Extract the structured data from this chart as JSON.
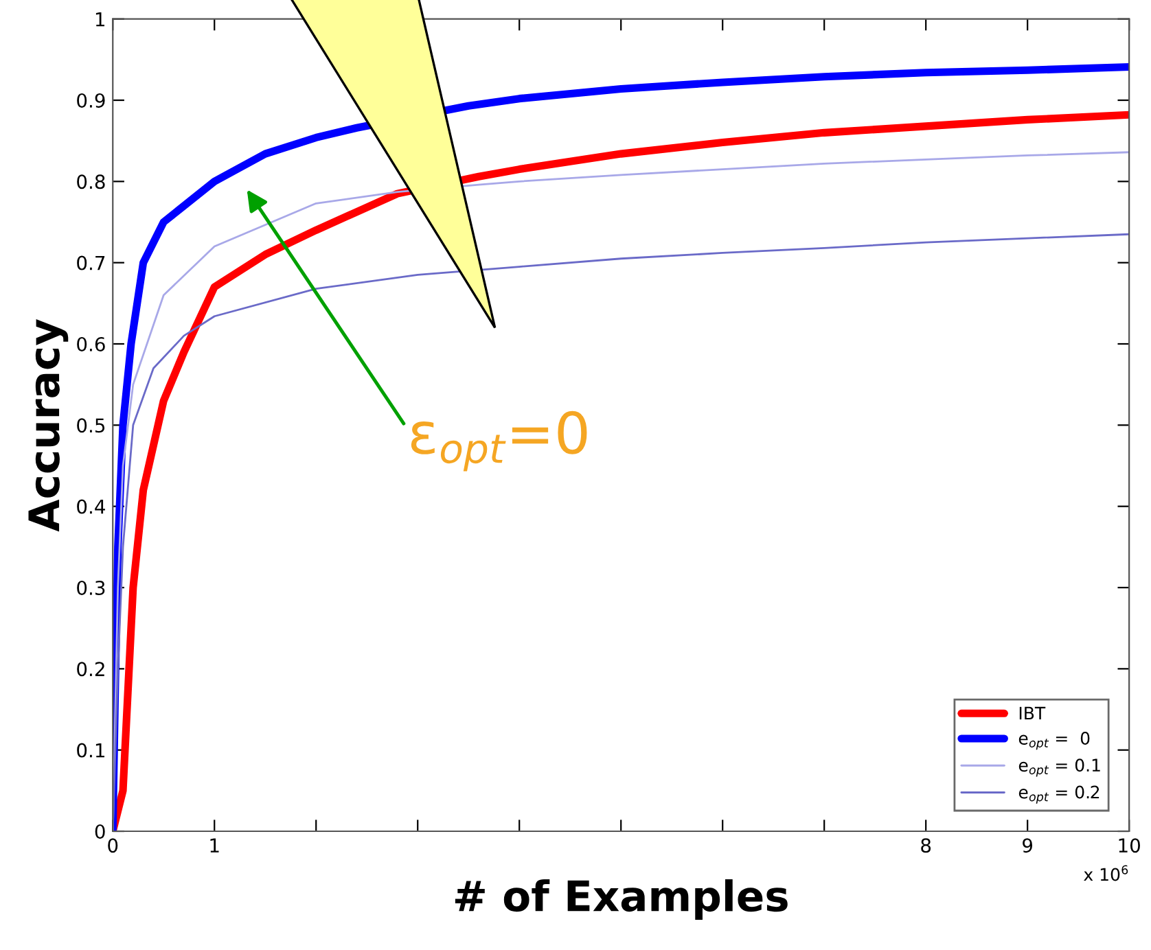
{
  "chart_data": {
    "type": "line",
    "xlabel": "# of Examples",
    "ylabel": "Accuracy",
    "xlim": [
      0,
      10
    ],
    "ylim": [
      0,
      1
    ],
    "xticks": [
      0,
      1,
      {
        "value": 2,
        "label": null
      },
      {
        "value": 3,
        "label": null
      },
      {
        "value": 4,
        "label": null
      },
      {
        "value": 5,
        "label": null
      },
      {
        "value": 6,
        "label": null
      },
      {
        "value": 7,
        "label": null
      },
      8,
      9,
      10
    ],
    "yticks": [
      0,
      0.1,
      0.2,
      0.3,
      0.4,
      0.5,
      0.6,
      0.7,
      0.8,
      0.9,
      1
    ],
    "grid": false,
    "legend": "bottom right",
    "marker": "none",
    "line_style": "solid",
    "series": [
      {
        "name": "IBT",
        "color": "#ff0000",
        "x": [
          0,
          0.1,
          0.2,
          0.3,
          0.5,
          0.7,
          1,
          1.5,
          2,
          2.8,
          3.6,
          4,
          5,
          6,
          7,
          8,
          9,
          10
        ],
        "values": [
          0,
          0.05,
          0.3,
          0.42,
          0.53,
          0.59,
          0.67,
          0.71,
          0.74,
          0.785,
          0.806,
          0.815,
          0.834,
          0.848,
          0.86,
          0.868,
          0.876,
          0.882
        ]
      },
      {
        "name": "e$_{opt}$ =  0",
        "color": "#0000ff",
        "x": [
          0,
          0.02,
          0.05,
          0.1,
          0.18,
          0.3,
          0.5,
          0.7,
          1,
          1.5,
          2,
          2.4,
          3.5,
          4,
          5,
          6,
          7,
          8,
          9,
          10
        ],
        "values": [
          0,
          0.15,
          0.35,
          0.5,
          0.6,
          0.7,
          0.75,
          0.77,
          0.8,
          0.834,
          0.854,
          0.866,
          0.893,
          0.902,
          0.914,
          0.922,
          0.929,
          0.934,
          0.937,
          0.941
        ]
      },
      {
        "name": "e$_{opt}$ = 0.1",
        "color": "#a8a8e8",
        "x": [
          0,
          0.05,
          0.1,
          0.2,
          0.5,
          1,
          2,
          2.8,
          3.6,
          4,
          5,
          6,
          7,
          8,
          9,
          10
        ],
        "values": [
          0,
          0.3,
          0.45,
          0.55,
          0.66,
          0.72,
          0.773,
          0.787,
          0.796,
          0.8,
          0.808,
          0.815,
          0.822,
          0.827,
          0.832,
          0.836
        ]
      },
      {
        "name": "e$_{opt}$ = 0.2",
        "color": "#6a6ac8",
        "x": [
          0,
          0.05,
          0.1,
          0.2,
          0.4,
          0.7,
          1,
          2,
          3,
          4,
          5,
          6,
          7,
          8,
          9,
          10
        ],
        "values": [
          0,
          0.2,
          0.35,
          0.5,
          0.57,
          0.61,
          0.634,
          0.668,
          0.685,
          0.695,
          0.705,
          0.712,
          0.718,
          0.725,
          0.73,
          0.735
        ]
      }
    ],
    "annotations": [
      "ε$_{opt}$=0",
      "x 10$^{6}$"
    ]
  }
}
